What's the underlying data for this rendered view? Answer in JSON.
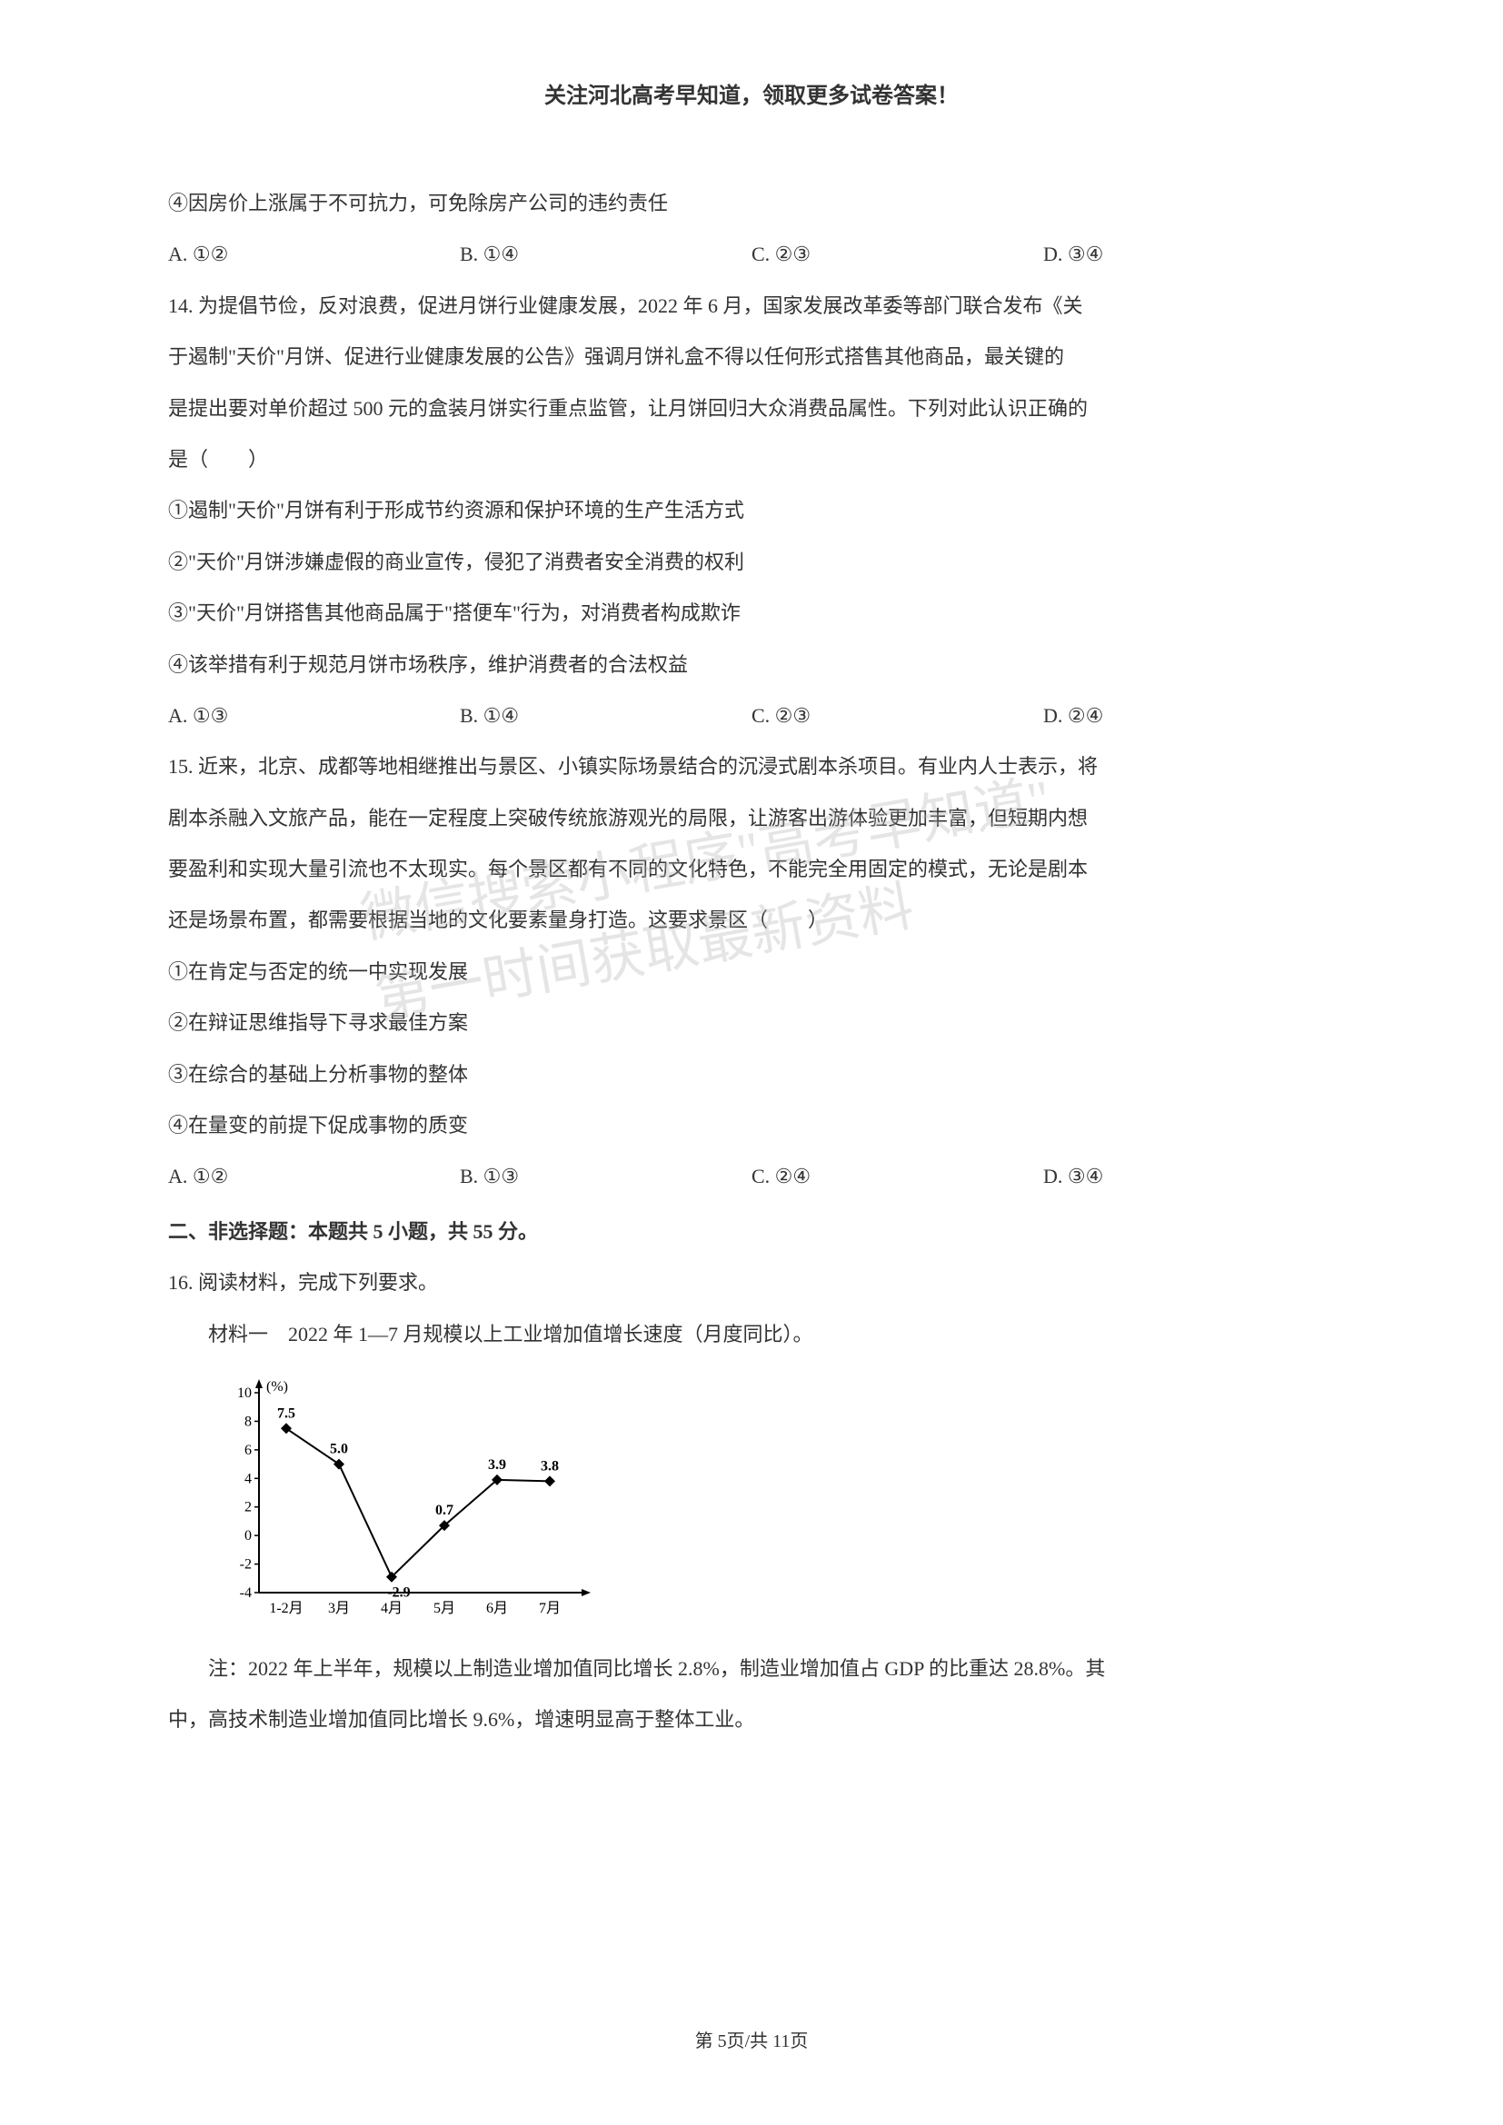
{
  "header": {
    "title": "关注河北高考早知道，领取更多试卷答案！"
  },
  "content": {
    "line1": "④因房价上涨属于不可抗力，可免除房产公司的违约责任",
    "q13_options": {
      "a": "A. ①②",
      "b": "B. ①④",
      "c": "C. ②③",
      "d": "D. ③④"
    },
    "q14_stem1": "14. 为提倡节俭，反对浪费，促进月饼行业健康发展，2022 年 6 月，国家发展改革委等部门联合发布《关",
    "q14_stem2": "于遏制\"天价\"月饼、促进行业健康发展的公告》强调月饼礼盒不得以任何形式搭售其他商品，最关键的",
    "q14_stem3": "是提出要对单价超过 500 元的盒装月饼实行重点监管，让月饼回归大众消费品属性。下列对此认识正确的",
    "q14_stem4": "是（　　）",
    "q14_item1": "①遏制\"天价\"月饼有利于形成节约资源和保护环境的生产生活方式",
    "q14_item2": "②\"天价\"月饼涉嫌虚假的商业宣传，侵犯了消费者安全消费的权利",
    "q14_item3": "③\"天价\"月饼搭售其他商品属于\"搭便车\"行为，对消费者构成欺诈",
    "q14_item4": "④该举措有利于规范月饼市场秩序，维护消费者的合法权益",
    "q14_options": {
      "a": "A. ①③",
      "b": "B. ①④",
      "c": "C. ②③",
      "d": "D. ②④"
    },
    "q15_stem1": "15. 近来，北京、成都等地相继推出与景区、小镇实际场景结合的沉浸式剧本杀项目。有业内人士表示，将",
    "q15_stem2": "剧本杀融入文旅产品，能在一定程度上突破传统旅游观光的局限，让游客出游体验更加丰富，但短期内想",
    "q15_stem3": "要盈利和实现大量引流也不太现实。每个景区都有不同的文化特色，不能完全用固定的模式，无论是剧本",
    "q15_stem4": "还是场景布置，都需要根据当地的文化要素量身打造。这要求景区（　　）",
    "q15_item1": "①在肯定与否定的统一中实现发展",
    "q15_item2": "②在辩证思维指导下寻求最佳方案",
    "q15_item3": "③在综合的基础上分析事物的整体",
    "q15_item4": "④在量变的前提下促成事物的质变",
    "q15_options": {
      "a": "A. ①②",
      "b": "B. ①③",
      "c": "C. ②④",
      "d": "D. ③④"
    },
    "section2_title": "二、非选择题：本题共 5 小题，共 55 分。",
    "q16_stem": "16. 阅读材料，完成下列要求。",
    "q16_material1": "材料一　2022 年 1—7 月规模以上工业增加值增长速度（月度同比）。",
    "q16_note1": "注：2022 年上半年，规模以上制造业增加值同比增长 2.8%，制造业增加值占 GDP 的比重达 28.8%。其",
    "q16_note2": "中，高技术制造业增加值同比增长 9.6%，增速明显高于整体工业。"
  },
  "chart": {
    "type": "line",
    "y_label": "(%)",
    "y_values": [
      -4,
      -2,
      0,
      2,
      4,
      6,
      8,
      10
    ],
    "x_labels": [
      "1-2月",
      "3月",
      "4月",
      "5月",
      "6月",
      "7月"
    ],
    "data_points": [
      7.5,
      5.0,
      -2.9,
      0.7,
      3.9,
      3.8
    ],
    "data_labels": [
      "7.5",
      "5.0",
      "-2.9",
      "0.7",
      "3.9",
      "3.8"
    ],
    "line_color": "#000000",
    "marker_style": "diamond",
    "marker_size": 6,
    "background_color": "#ffffff",
    "axis_color": "#000000",
    "font_size": 16
  },
  "footer": {
    "page_info": "第 5页/共 11页"
  },
  "watermark": {
    "line1": "微信搜索小程序\"高考早知道\"",
    "line2": "第一时间获取最新资料"
  }
}
